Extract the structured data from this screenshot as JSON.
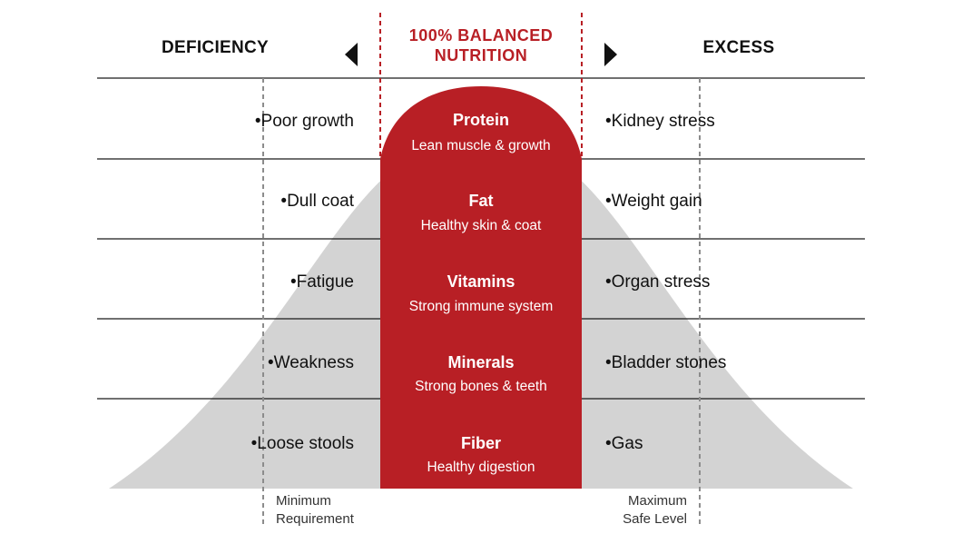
{
  "colors": {
    "accent_red": "#b81f25",
    "curve_gray": "#d3d3d3",
    "line_dark": "#1a1a1a",
    "dashed_gray": "#8c8c8c",
    "text_dark": "#111111",
    "text_white": "#ffffff"
  },
  "header": {
    "deficiency_label": "DEFICIENCY",
    "excess_label": "EXCESS",
    "balanced_line1": "100% BALANCED",
    "balanced_line2": "NUTRITION",
    "left_arrow_icon": "triangle-left-icon",
    "right_arrow_icon": "triangle-right-icon"
  },
  "rows": [
    {
      "nutrient": "Protein",
      "benefit": "Lean muscle & growth",
      "deficiency": "•Poor growth",
      "excess": "•Kidney stress"
    },
    {
      "nutrient": "Fat",
      "benefit": "Healthy skin & coat",
      "deficiency": "•Dull coat",
      "excess": "•Weight gain"
    },
    {
      "nutrient": "Vitamins",
      "benefit": "Strong immune system",
      "deficiency": "•Fatigue",
      "excess": "•Organ stress"
    },
    {
      "nutrient": "Minerals",
      "benefit": "Strong bones & teeth",
      "deficiency": "•Weakness",
      "excess": "•Bladder stones"
    },
    {
      "nutrient": "Fiber",
      "benefit": "Healthy digestion",
      "deficiency": "•Loose stools",
      "excess": "•Gas"
    }
  ],
  "footer": {
    "minimum_line1": "Minimum",
    "minimum_line2": "Requirement",
    "maximum_line1": "Maximum",
    "maximum_line2": "Safe Level"
  }
}
